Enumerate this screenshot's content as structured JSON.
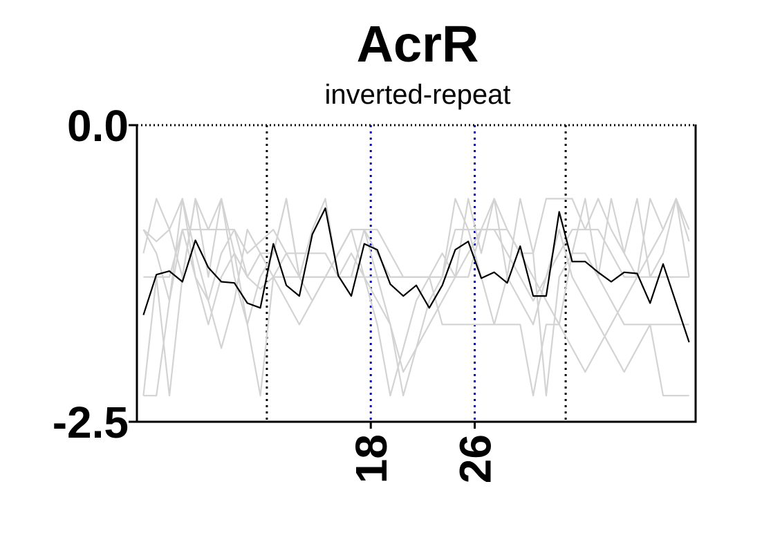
{
  "chart_data": {
    "type": "line",
    "title": "AcrR",
    "subtitle": "inverted-repeat",
    "xlim": [
      0,
      43
    ],
    "ylim": [
      -2.5,
      0.0
    ],
    "y_ticks": [
      {
        "value": 0.0,
        "label": "0.0"
      },
      {
        "value": -2.5,
        "label": "-2.5"
      }
    ],
    "x_ticks": [
      {
        "value": 18,
        "label": "18"
      },
      {
        "value": 26,
        "label": "26"
      }
    ],
    "vlines": [
      {
        "x": 10,
        "style": "dotted",
        "color": "#000000"
      },
      {
        "x": 18,
        "style": "dotted",
        "color": "#0000cc"
      },
      {
        "x": 26,
        "style": "dotted",
        "color": "#0000cc"
      },
      {
        "x": 33,
        "style": "dotted",
        "color": "#000000"
      }
    ],
    "colors": {
      "background_series": "#d3d3d3",
      "main_series": "#000000"
    },
    "x": [
      0.5,
      1.5,
      2.5,
      3.5,
      4.5,
      5.5,
      6.5,
      7.5,
      8.5,
      9.5,
      10.5,
      11.5,
      12.5,
      13.5,
      14.5,
      15.5,
      16.5,
      17.5,
      18.5,
      19.5,
      20.5,
      21.5,
      22.5,
      23.5,
      24.5,
      25.5,
      26.5,
      27.5,
      28.5,
      29.5,
      30.5,
      31.5,
      32.5,
      33.5,
      34.5,
      35.5,
      36.5,
      37.5,
      38.5,
      39.5,
      40.5,
      41.5,
      42.5
    ],
    "series": [
      {
        "role": "background",
        "values": [
          -0.88,
          -0.98,
          -0.88,
          -0.62,
          -1.28,
          -1.48,
          -1.08,
          -0.88,
          -1.28,
          -1.38,
          -1.28,
          -1.28,
          -1.28,
          -1.28,
          -1.28,
          -1.28,
          -1.28,
          -1.28,
          -1.28,
          -1.28,
          -1.28,
          -1.28,
          -1.28,
          -1.68,
          -1.68,
          -1.68,
          -1.68,
          -1.68,
          -1.68,
          -1.68,
          -2.28,
          -1.68,
          -1.68,
          -1.08,
          -1.08,
          -1.28,
          -1.48,
          -1.68,
          -1.68,
          -1.68,
          -1.68,
          -1.68,
          -1.68
        ]
      },
      {
        "role": "background",
        "values": [
          -1.28,
          -1.28,
          -1.28,
          -0.88,
          -0.88,
          -0.88,
          -0.88,
          -0.88,
          -1.08,
          -0.98,
          -0.88,
          -1.08,
          -1.28,
          -1.28,
          -1.28,
          -1.28,
          -1.28,
          -0.88,
          -0.88,
          -1.08,
          -1.28,
          -1.28,
          -1.28,
          -1.28,
          -1.28,
          -1.28,
          -0.88,
          -0.88,
          -1.08,
          -1.28,
          -1.48,
          -1.28,
          -1.08,
          -0.88,
          -0.88,
          -0.88,
          -1.08,
          -1.28,
          -1.28,
          -1.28,
          -1.28,
          -1.28,
          -1.28
        ]
      },
      {
        "role": "background",
        "values": [
          -2.28,
          -2.28,
          -1.48,
          -0.88,
          -1.28,
          -1.68,
          -1.28,
          -1.08,
          -1.68,
          -2.28,
          -1.28,
          -1.08,
          -1.08,
          -1.08,
          -1.08,
          -1.28,
          -1.28,
          -0.88,
          -1.28,
          -1.68,
          -2.28,
          -1.88,
          -1.48,
          -1.28,
          -0.88,
          -0.88,
          -1.28,
          -1.68,
          -1.28,
          -1.48,
          -1.68,
          -1.28,
          -0.88,
          -1.28,
          -1.48,
          -1.68,
          -1.88,
          -2.08,
          -1.88,
          -1.68,
          -2.28,
          -2.28,
          -2.28
        ]
      },
      {
        "role": "background",
        "values": [
          -1.08,
          -0.62,
          -0.88,
          -1.28,
          -0.62,
          -0.88,
          -0.62,
          -1.08,
          -1.28,
          -1.08,
          -1.08,
          -0.62,
          -1.28,
          -1.48,
          -1.28,
          -1.08,
          -0.88,
          -0.88,
          -1.08,
          -1.28,
          -1.28,
          -1.28,
          -1.28,
          -1.28,
          -0.62,
          -0.88,
          -0.88,
          -0.88,
          -0.88,
          -1.08,
          -1.08,
          -0.62,
          -0.62,
          -0.62,
          -0.88,
          -0.62,
          -0.88,
          -1.08,
          -1.28,
          -0.62,
          -0.88,
          -0.62,
          -1.28
        ]
      },
      {
        "role": "background",
        "values": [
          -0.88,
          -1.08,
          -1.48,
          -0.62,
          -1.08,
          -1.48,
          -1.88,
          -1.48,
          -0.88,
          -1.08,
          -1.28,
          -1.48,
          -1.68,
          -1.48,
          -1.28,
          -1.08,
          -0.88,
          -1.28,
          -1.48,
          -1.68,
          -2.08,
          -1.88,
          -1.68,
          -1.48,
          -1.28,
          -1.08,
          -0.88,
          -0.62,
          -0.88,
          -1.08,
          -1.28,
          -1.48,
          -1.68,
          -1.88,
          -2.08,
          -1.88,
          -1.68,
          -1.48,
          -1.28,
          -1.08,
          -0.88,
          -0.62,
          -0.88
        ]
      },
      {
        "role": "background",
        "values": [
          -2.28,
          -1.28,
          -2.28,
          -1.28,
          -0.62,
          -1.28,
          -0.62,
          -1.28,
          -1.68,
          -1.28,
          -1.08,
          -0.62,
          -1.28,
          -0.88,
          -0.62,
          -1.28,
          -1.08,
          -1.28,
          -1.68,
          -2.28,
          -1.88,
          -1.48,
          -1.28,
          -1.08,
          -1.28,
          -0.62,
          -1.08,
          -0.62,
          -1.28,
          -0.62,
          -1.08,
          -2.28,
          -1.28,
          -1.08,
          -0.62,
          -1.28,
          -0.62,
          -1.08,
          -0.62,
          -1.28,
          -1.08,
          -0.62,
          -0.98
        ]
      },
      {
        "role": "main",
        "values": [
          -1.6,
          -1.26,
          -1.23,
          -1.32,
          -0.97,
          -1.2,
          -1.32,
          -1.33,
          -1.5,
          -1.54,
          -1.0,
          -1.35,
          -1.44,
          -0.92,
          -0.7,
          -1.27,
          -1.44,
          -1.0,
          -1.05,
          -1.34,
          -1.44,
          -1.35,
          -1.54,
          -1.35,
          -1.05,
          -0.98,
          -1.29,
          -1.24,
          -1.33,
          -1.02,
          -1.44,
          -1.44,
          -0.73,
          -1.15,
          -1.15,
          -1.24,
          -1.32,
          -1.24,
          -1.25,
          -1.5,
          -1.17,
          -1.5,
          -1.83
        ]
      }
    ]
  }
}
